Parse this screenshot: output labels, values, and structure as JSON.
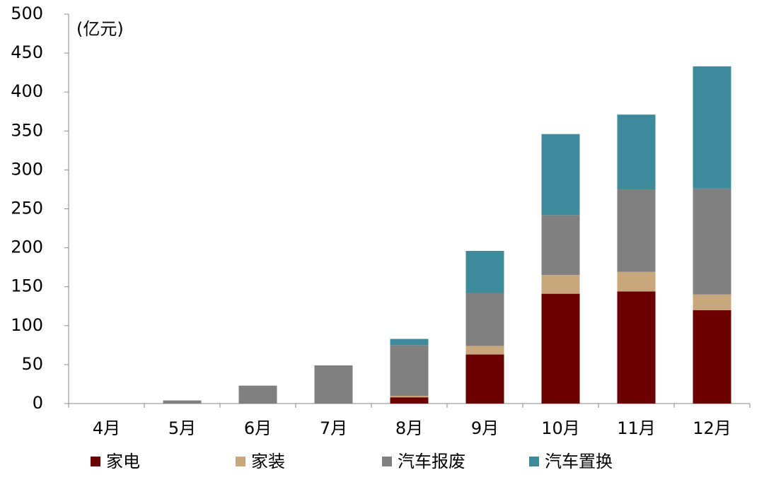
{
  "chart_data": {
    "type": "stacked_bar",
    "unit_label": "(亿元)",
    "categories": [
      "4月",
      "5月",
      "6月",
      "7月",
      "8月",
      "9月",
      "10月",
      "11月",
      "12月"
    ],
    "series": [
      {
        "name": "家电",
        "color": "#6b0000",
        "values": [
          0,
          0,
          0,
          0,
          8,
          63,
          141,
          144,
          120
        ]
      },
      {
        "name": "家装",
        "color": "#c9a77c",
        "values": [
          0,
          0,
          0,
          0,
          2,
          11,
          24,
          25,
          20
        ]
      },
      {
        "name": "汽车报废",
        "color": "#808080",
        "values": [
          0,
          4,
          23,
          49,
          65,
          68,
          77,
          106,
          136
        ]
      },
      {
        "name": "汽车置换",
        "color": "#3f8a9a",
        "values": [
          0,
          0,
          0,
          0,
          8,
          54,
          104,
          96,
          157
        ]
      }
    ],
    "ylim": [
      0,
      500
    ],
    "yticks": [
      0,
      50,
      100,
      150,
      200,
      250,
      300,
      350,
      400,
      450,
      500
    ],
    "grid": false
  }
}
